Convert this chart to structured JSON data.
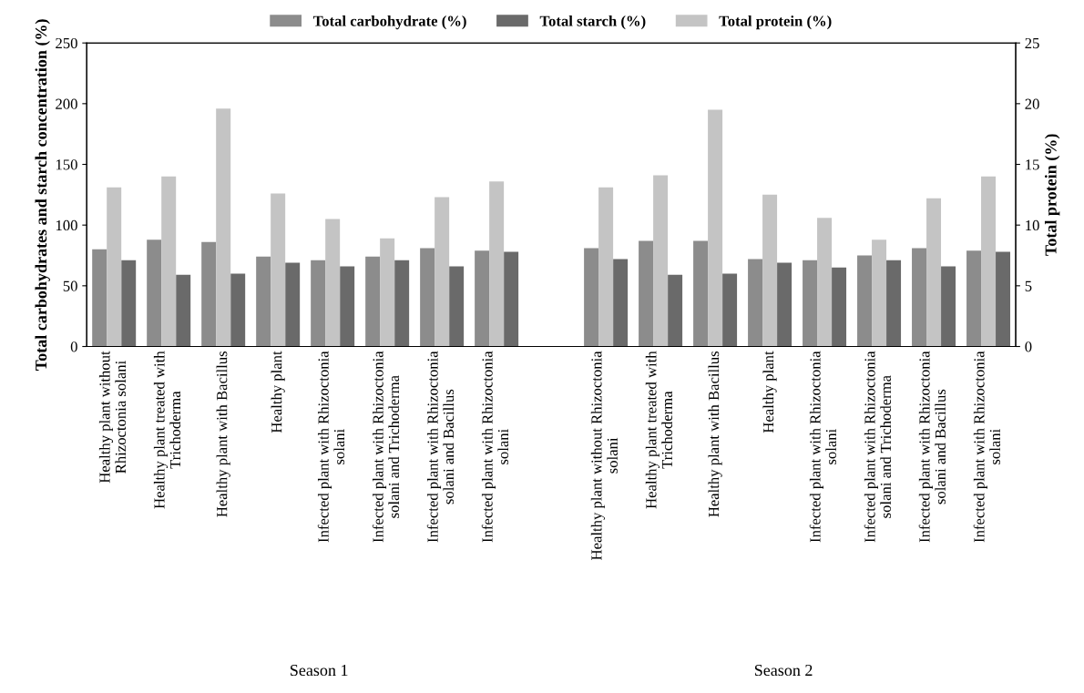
{
  "chart_data": {
    "type": "bar",
    "categories": [
      "Healthy plant without\nRhizoctonia solani",
      "Healthy plant treated with\nTrichoderma",
      "Healthy plant with Bacillus",
      "Healthy plant",
      "Infected plant with Rhizoctonia\nsolani",
      "Infected plant with Rhizoctonia\nsolani and Trichoderma",
      "Infected plant with Rhizoctonia\nsolani and Bacillus",
      "Infected plant with Rhizoctonia\nsolani",
      null,
      "Healthy plant without Rhizoctonia\nsolani",
      "Healthy plant treated with\nTrichoderma",
      "Healthy plant with Bacillus",
      "Healthy plant",
      "Infected plant with Rhizoctonia\nsolani",
      "Infected plant with Rhizoctonia\nsolani and Trichoderma",
      "Infected plant with Rhizoctonia\nsolani and Bacillus",
      "Infected plant with Rhizoctonia\nsolani"
    ],
    "series": [
      {
        "name": "Total carbohydrate (%)",
        "color": "#8c8c8c",
        "values": [
          80,
          88,
          86,
          74,
          71,
          74,
          81,
          79,
          null,
          81,
          87,
          87,
          72,
          71,
          75,
          81,
          79
        ]
      },
      {
        "name": "Total protein (%)",
        "color": "#c4c4c4",
        "axis": "y2",
        "values": [
          13.1,
          14.0,
          19.6,
          12.6,
          10.5,
          8.9,
          12.3,
          13.6,
          null,
          13.1,
          14.1,
          19.5,
          12.5,
          10.6,
          8.8,
          12.2,
          14.0
        ]
      },
      {
        "name": "Total starch (%)",
        "color": "#6a6a6a",
        "values": [
          71,
          59,
          60,
          69,
          66,
          71,
          66,
          78,
          null,
          72,
          59,
          60,
          69,
          65,
          71,
          66,
          78
        ]
      }
    ],
    "ylabel": "Total carbohydrates and starch concentration (%)",
    "y2label": "Total protein (%)",
    "ylim": [
      0,
      250
    ],
    "yticks": [
      0,
      50,
      100,
      150,
      200,
      250
    ],
    "y2lim": [
      0,
      25
    ],
    "y2ticks": [
      0,
      5,
      10,
      15,
      20,
      25
    ],
    "annotations": [
      "Season 1",
      "Season 2"
    ],
    "legend": "top",
    "grid": false
  }
}
